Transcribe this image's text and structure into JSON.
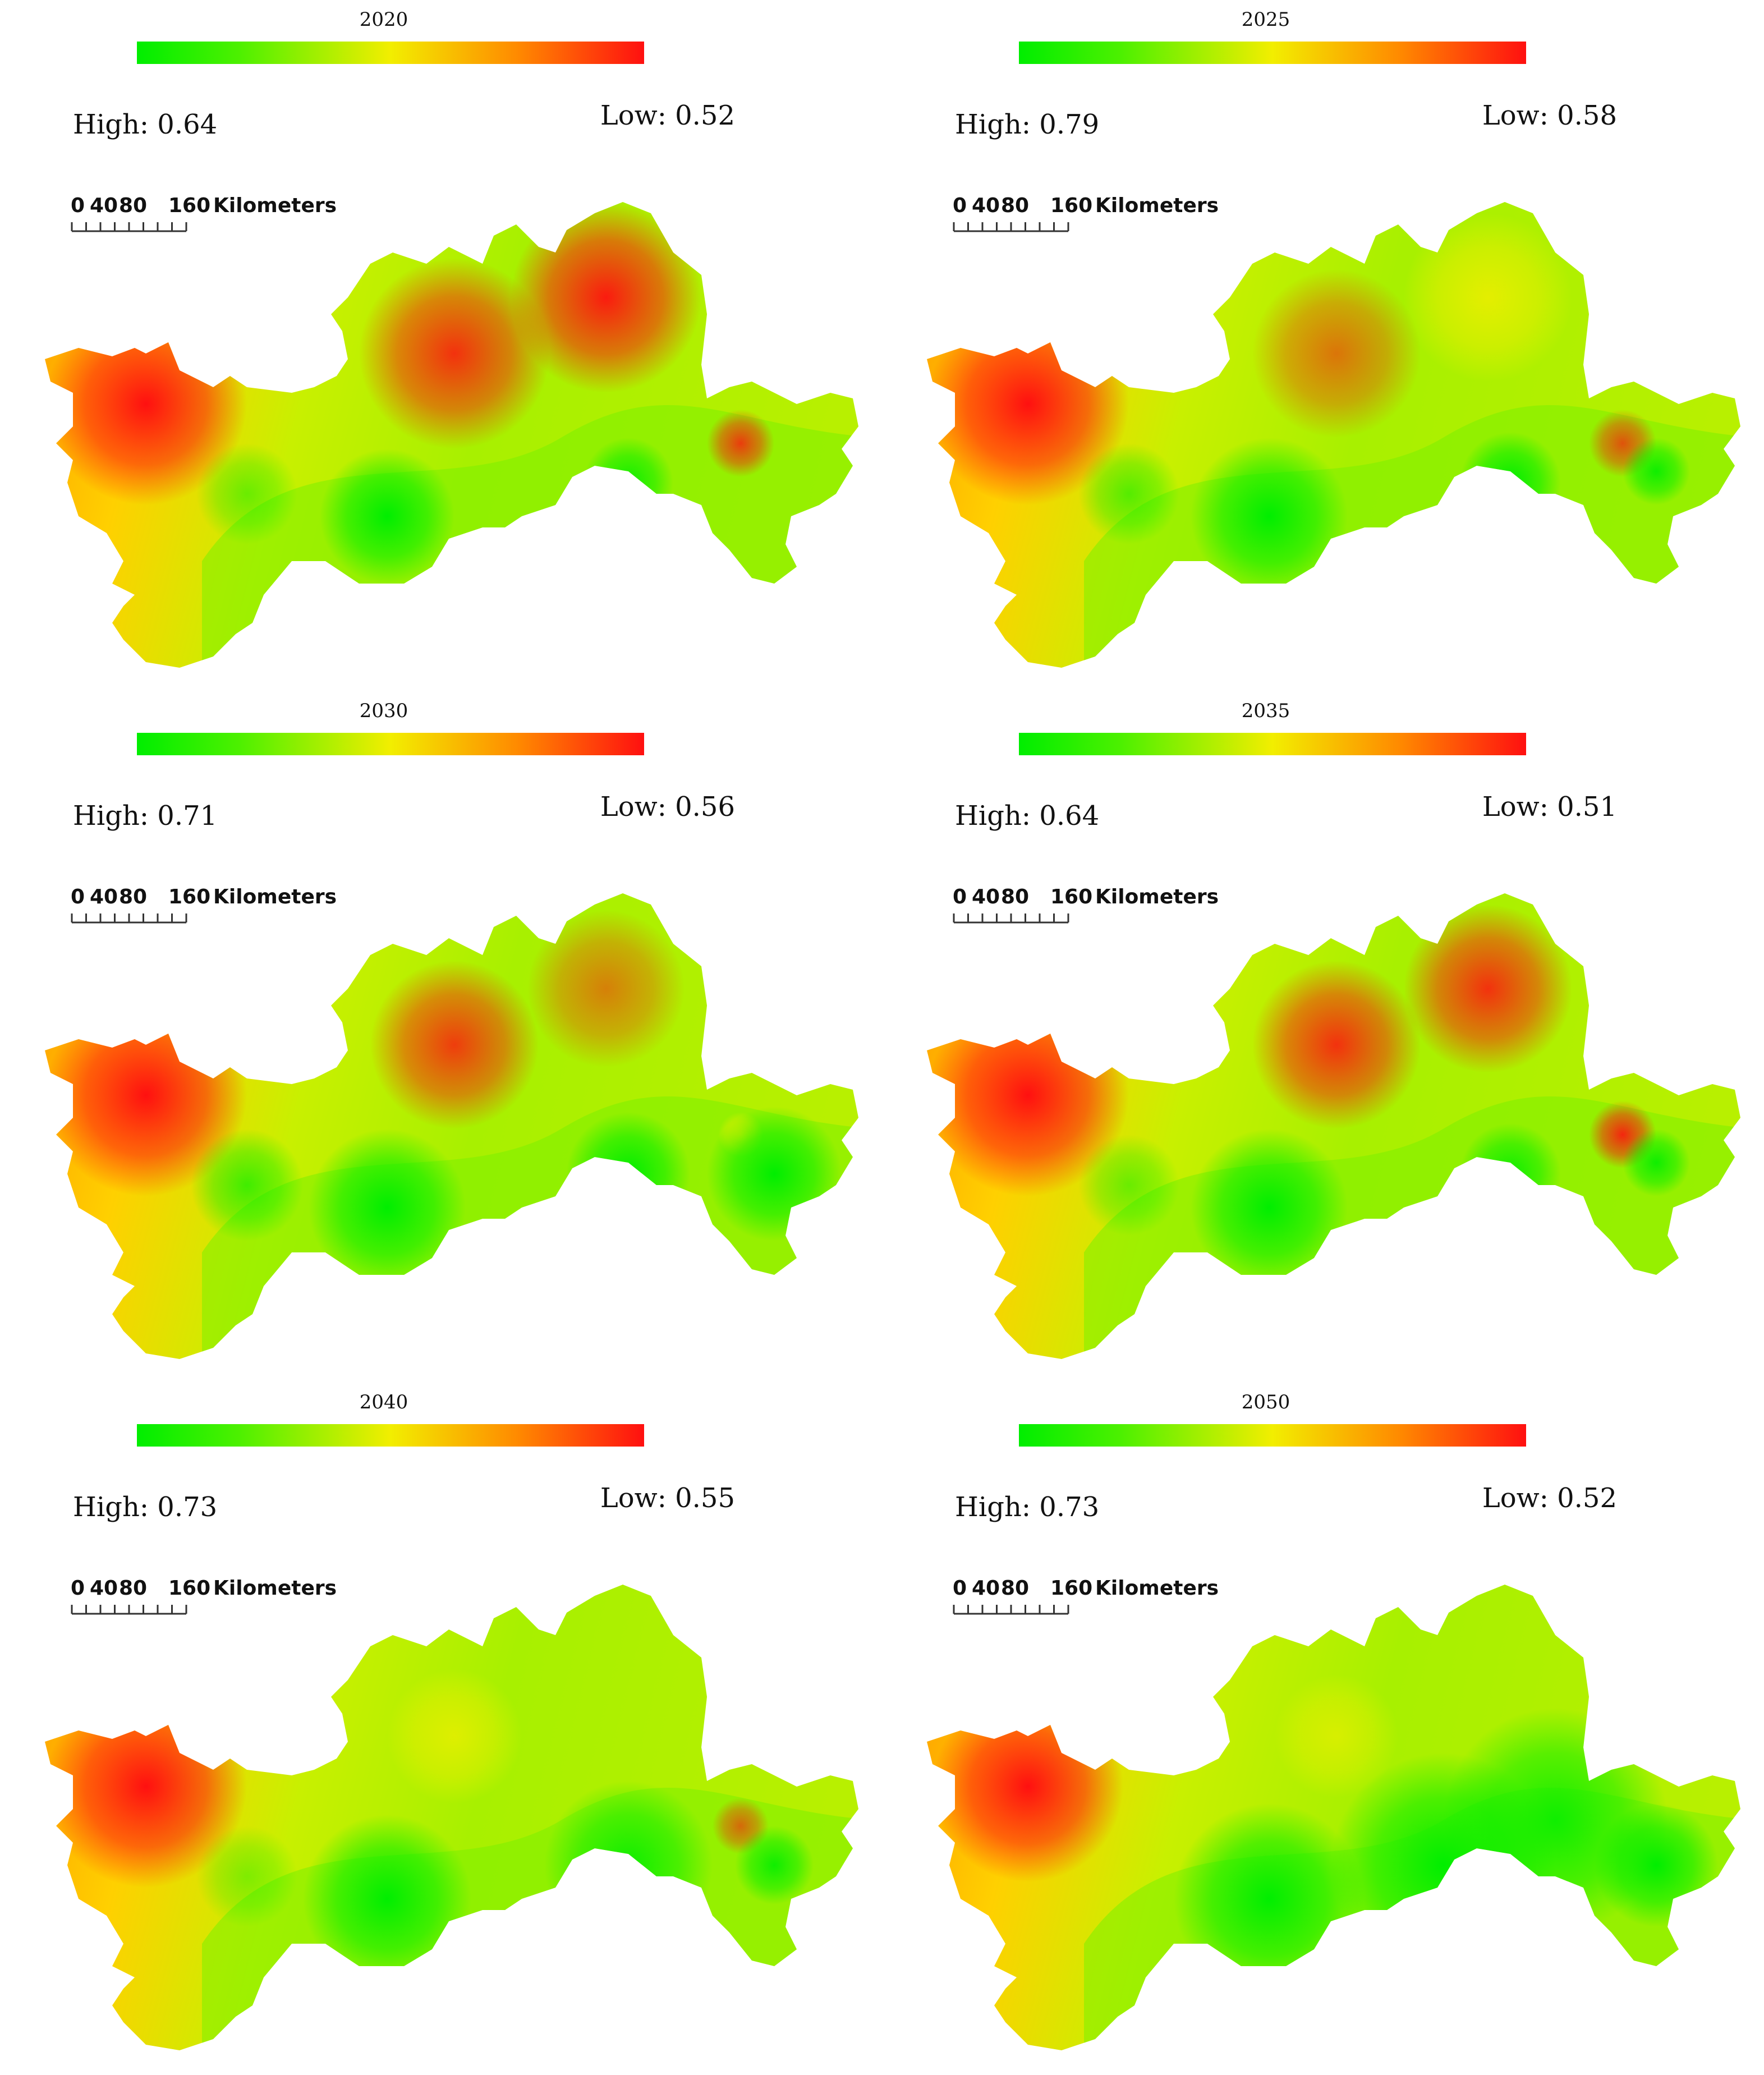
{
  "colors": {
    "low": "#00ee00",
    "mid": "#f2ee00",
    "high": "#ff1010"
  },
  "scale_bar": {
    "ticks": [
      "0",
      "40",
      "80",
      "160"
    ],
    "unit": "Kilometers"
  },
  "panels": [
    {
      "year": "2020",
      "high": "High: 0.64",
      "low": "Low: 0.52"
    },
    {
      "year": "2025",
      "high": "High: 0.79",
      "low": "Low: 0.58"
    },
    {
      "year": "2030",
      "high": "High: 0.71",
      "low": "Low: 0.56"
    },
    {
      "year": "2035",
      "high": "High: 0.64",
      "low": "Low: 0.51"
    },
    {
      "year": "2040",
      "high": "High: 0.73",
      "low": "Low: 0.55"
    },
    {
      "year": "2050",
      "high": "High: 0.73",
      "low": "Low: 0.52"
    }
  ]
}
